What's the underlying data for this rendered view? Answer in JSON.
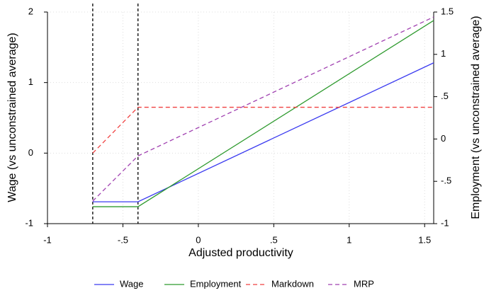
{
  "chart_data": {
    "type": "line",
    "x_label": "Adjusted productivity",
    "y_label": "Wage (vs unconstrained average)",
    "y2_label": "Employment (vs unconstrained average)",
    "x": [
      -0.7,
      -0.4,
      1.56
    ],
    "xlim": [
      -1,
      1.56
    ],
    "xticks": [
      -1,
      {
        "value": -0.5,
        "label": "-.5"
      },
      0,
      {
        "value": 0.5,
        "label": ".5"
      },
      1,
      1.5
    ],
    "ylim": [
      -1,
      2
    ],
    "yticks": [
      -1,
      0,
      1,
      2
    ],
    "y2lim": [
      -1,
      1.5
    ],
    "y2ticks": [
      -1,
      {
        "value": -0.5,
        "label": "-.5"
      },
      0,
      {
        "value": 0.5,
        "label": ".5"
      },
      1,
      1.5
    ],
    "grid": true,
    "vlines": [
      -0.7,
      -0.4
    ],
    "series": [
      {
        "name": "Wage",
        "color": "#3b3bf0",
        "dashed": false,
        "values": [
          -0.69,
          -0.69,
          1.28
        ]
      },
      {
        "name": "Employment",
        "color": "#2e9a2e",
        "dashed": false,
        "axis": "y2",
        "values": [
          -0.8,
          -0.8,
          1.4
        ]
      },
      {
        "name": "Markdown",
        "color": "#f04040",
        "dashed": true,
        "values": [
          0,
          0.65,
          0.65
        ]
      },
      {
        "name": "MRP",
        "color": "#a040b0",
        "dashed": true,
        "values": [
          -0.68,
          -0.04,
          1.93
        ]
      }
    ]
  }
}
